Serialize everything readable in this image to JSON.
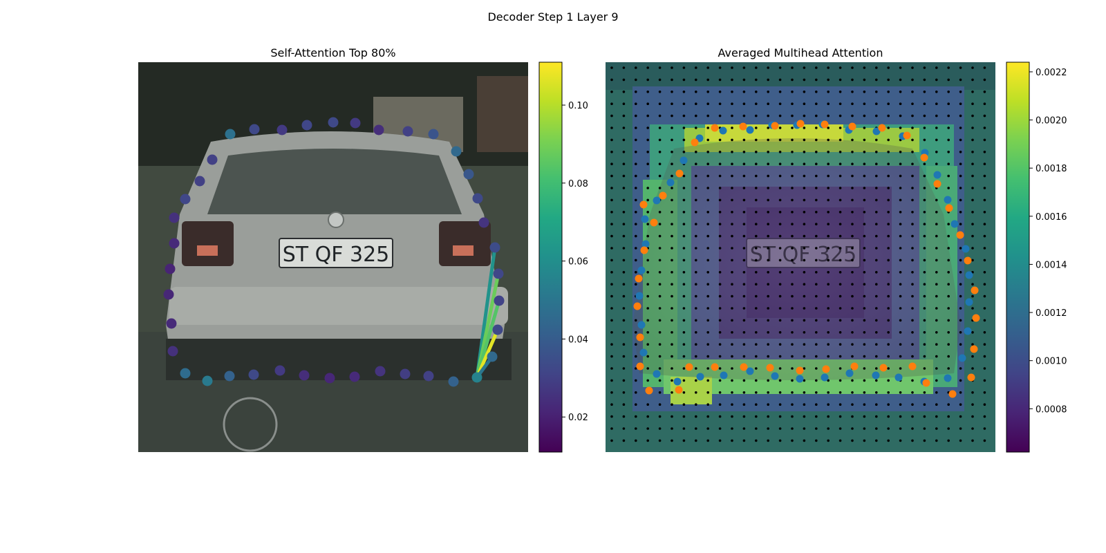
{
  "figure": {
    "suptitle": "Decoder Step 1 Layer 9"
  },
  "chart_data": [
    {
      "type": "image-overlay-scatter",
      "title": "Self-Attention Top 80%",
      "image_content": "rear view of a silver hatchback car, licence plate reading ST QF 325",
      "colormap": "viridis",
      "colorbar": {
        "range": [
          0.011,
          0.111
        ],
        "ticks": [
          0.02,
          0.04,
          0.06,
          0.08,
          0.1
        ],
        "tick_labels": [
          "0.02",
          "0.04",
          "0.06",
          "0.08",
          "0.10"
        ]
      },
      "contour_points": [
        {
          "x": 333,
          "y": 194,
          "v": 0.048
        },
        {
          "x": 368,
          "y": 187,
          "v": 0.033
        },
        {
          "x": 408,
          "y": 188,
          "v": 0.028
        },
        {
          "x": 444,
          "y": 181,
          "v": 0.032
        },
        {
          "x": 482,
          "y": 177,
          "v": 0.033
        },
        {
          "x": 514,
          "y": 178,
          "v": 0.028
        },
        {
          "x": 548,
          "y": 188,
          "v": 0.024
        },
        {
          "x": 590,
          "y": 190,
          "v": 0.03
        },
        {
          "x": 627,
          "y": 194,
          "v": 0.037
        },
        {
          "x": 660,
          "y": 219,
          "v": 0.045
        },
        {
          "x": 678,
          "y": 252,
          "v": 0.038
        },
        {
          "x": 691,
          "y": 287,
          "v": 0.033
        },
        {
          "x": 700,
          "y": 322,
          "v": 0.026
        },
        {
          "x": 716,
          "y": 358,
          "v": 0.034
        },
        {
          "x": 721,
          "y": 396,
          "v": 0.032
        },
        {
          "x": 722,
          "y": 435,
          "v": 0.031
        },
        {
          "x": 720,
          "y": 477,
          "v": 0.033
        },
        {
          "x": 712,
          "y": 516,
          "v": 0.045
        },
        {
          "x": 690,
          "y": 546,
          "v": 0.055
        },
        {
          "x": 656,
          "y": 552,
          "v": 0.042
        },
        {
          "x": 620,
          "y": 544,
          "v": 0.03
        },
        {
          "x": 586,
          "y": 541,
          "v": 0.029
        },
        {
          "x": 550,
          "y": 537,
          "v": 0.026
        },
        {
          "x": 513,
          "y": 545,
          "v": 0.023
        },
        {
          "x": 477,
          "y": 547,
          "v": 0.022
        },
        {
          "x": 440,
          "y": 543,
          "v": 0.024
        },
        {
          "x": 405,
          "y": 536,
          "v": 0.028
        },
        {
          "x": 367,
          "y": 542,
          "v": 0.033
        },
        {
          "x": 332,
          "y": 544,
          "v": 0.042
        },
        {
          "x": 300,
          "y": 551,
          "v": 0.052
        },
        {
          "x": 268,
          "y": 540,
          "v": 0.046
        },
        {
          "x": 250,
          "y": 508,
          "v": 0.025
        },
        {
          "x": 248,
          "y": 468,
          "v": 0.023
        },
        {
          "x": 244,
          "y": 426,
          "v": 0.022
        },
        {
          "x": 246,
          "y": 389,
          "v": 0.021
        },
        {
          "x": 252,
          "y": 352,
          "v": 0.023
        },
        {
          "x": 252,
          "y": 315,
          "v": 0.025
        },
        {
          "x": 268,
          "y": 288,
          "v": 0.032
        },
        {
          "x": 289,
          "y": 262,
          "v": 0.03
        },
        {
          "x": 307,
          "y": 231,
          "v": 0.03
        }
      ],
      "attention_lines": [
        {
          "x1": 690,
          "y1": 546,
          "x2": 716,
          "y2": 358,
          "v": 0.062
        },
        {
          "x1": 690,
          "y1": 546,
          "x2": 721,
          "y2": 396,
          "v": 0.088
        },
        {
          "x1": 690,
          "y1": 546,
          "x2": 722,
          "y2": 435,
          "v": 0.084
        },
        {
          "x1": 690,
          "y1": 546,
          "x2": 720,
          "y2": 477,
          "v": 0.07
        },
        {
          "x1": 690,
          "y1": 546,
          "x2": 717,
          "y2": 484,
          "v": 0.107
        },
        {
          "x1": 690,
          "y1": 546,
          "x2": 712,
          "y2": 516,
          "v": 0.05
        }
      ]
    },
    {
      "type": "heatmap-overlay-scatter",
      "title": "Averaged Multihead Attention",
      "image_content": "rear view of a silver hatchback car, licence plate reading ST QF 325",
      "colormap": "viridis",
      "colorbar": {
        "range": [
          0.00062,
          0.00224
        ],
        "ticks": [
          0.0008,
          0.001,
          0.0012,
          0.0014,
          0.0016,
          0.0018,
          0.002,
          0.0022
        ],
        "tick_labels": [
          "0.0008",
          "0.0010",
          "0.0012",
          "0.0014",
          "0.0016",
          "0.0018",
          "0.0020",
          "0.0022"
        ]
      },
      "reference_grid": "black dots",
      "series": [
        {
          "color": "#1f77b4",
          "points": [
            {
              "x": 1012,
              "y": 200
            },
            {
              "x": 1046,
              "y": 189
            },
            {
              "x": 1085,
              "y": 188
            },
            {
              "x": 1117,
              "y": 181
            },
            {
              "x": 1153,
              "y": 181
            },
            {
              "x": 1190,
              "y": 180
            },
            {
              "x": 1228,
              "y": 188
            },
            {
              "x": 1268,
              "y": 190
            },
            {
              "x": 1306,
              "y": 197
            },
            {
              "x": 1338,
              "y": 221
            },
            {
              "x": 1356,
              "y": 253
            },
            {
              "x": 1371,
              "y": 289
            },
            {
              "x": 1381,
              "y": 324
            },
            {
              "x": 1397,
              "y": 360
            },
            {
              "x": 1402,
              "y": 398
            },
            {
              "x": 1402,
              "y": 437
            },
            {
              "x": 1400,
              "y": 479
            },
            {
              "x": 1392,
              "y": 518
            },
            {
              "x": 1371,
              "y": 547
            },
            {
              "x": 1337,
              "y": 552
            },
            {
              "x": 1300,
              "y": 546
            },
            {
              "x": 1267,
              "y": 543
            },
            {
              "x": 1229,
              "y": 540
            },
            {
              "x": 1193,
              "y": 546
            },
            {
              "x": 1157,
              "y": 548
            },
            {
              "x": 1121,
              "y": 544
            },
            {
              "x": 1085,
              "y": 537
            },
            {
              "x": 1047,
              "y": 543
            },
            {
              "x": 1013,
              "y": 545
            },
            {
              "x": 980,
              "y": 552
            },
            {
              "x": 950,
              "y": 541
            },
            {
              "x": 931,
              "y": 510
            },
            {
              "x": 928,
              "y": 470
            },
            {
              "x": 925,
              "y": 428
            },
            {
              "x": 928,
              "y": 391
            },
            {
              "x": 934,
              "y": 353
            },
            {
              "x": 933,
              "y": 317
            },
            {
              "x": 950,
              "y": 290
            },
            {
              "x": 970,
              "y": 264
            },
            {
              "x": 989,
              "y": 232
            }
          ]
        },
        {
          "color": "#ff7f0e",
          "points": [
            {
              "x": 1005,
              "y": 206
            },
            {
              "x": 1034,
              "y": 185
            },
            {
              "x": 1075,
              "y": 183
            },
            {
              "x": 1121,
              "y": 182
            },
            {
              "x": 1158,
              "y": 179
            },
            {
              "x": 1193,
              "y": 180
            },
            {
              "x": 1233,
              "y": 183
            },
            {
              "x": 1276,
              "y": 185
            },
            {
              "x": 1312,
              "y": 196
            },
            {
              "x": 1337,
              "y": 228
            },
            {
              "x": 1356,
              "y": 266
            },
            {
              "x": 1373,
              "y": 301
            },
            {
              "x": 1389,
              "y": 340
            },
            {
              "x": 1400,
              "y": 377
            },
            {
              "x": 1410,
              "y": 420
            },
            {
              "x": 1412,
              "y": 460
            },
            {
              "x": 1409,
              "y": 505
            },
            {
              "x": 1405,
              "y": 546
            },
            {
              "x": 1378,
              "y": 570
            },
            {
              "x": 1340,
              "y": 554
            },
            {
              "x": 1320,
              "y": 530
            },
            {
              "x": 1278,
              "y": 532
            },
            {
              "x": 1236,
              "y": 530
            },
            {
              "x": 1195,
              "y": 534
            },
            {
              "x": 1157,
              "y": 536
            },
            {
              "x": 1114,
              "y": 532
            },
            {
              "x": 1076,
              "y": 531
            },
            {
              "x": 1034,
              "y": 531
            },
            {
              "x": 997,
              "y": 531
            },
            {
              "x": 982,
              "y": 564
            },
            {
              "x": 939,
              "y": 565
            },
            {
              "x": 926,
              "y": 530
            },
            {
              "x": 926,
              "y": 488
            },
            {
              "x": 922,
              "y": 443
            },
            {
              "x": 924,
              "y": 403
            },
            {
              "x": 932,
              "y": 362
            },
            {
              "x": 946,
              "y": 322
            },
            {
              "x": 931,
              "y": 296
            },
            {
              "x": 959,
              "y": 283
            },
            {
              "x": 983,
              "y": 251
            }
          ]
        }
      ]
    }
  ]
}
